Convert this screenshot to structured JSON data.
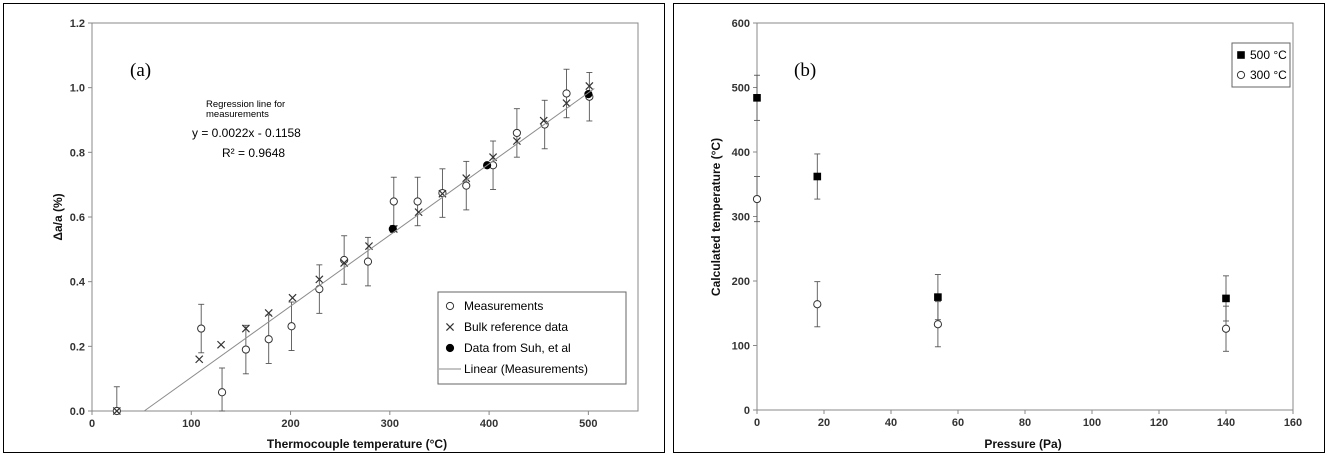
{
  "chart_data": [
    {
      "type": "scatter",
      "panel_label": "(a)",
      "xlabel": "Thermocouple temperature (°C)",
      "ylabel": "Δa/a (%)",
      "xlim": [
        0,
        550
      ],
      "ylim": [
        0,
        1.2
      ],
      "x_ticks": [
        "0",
        "100",
        "200",
        "300",
        "400",
        "500"
      ],
      "y_ticks": [
        "0.0",
        "0.2",
        "0.4",
        "0.6",
        "0.8",
        "1.0",
        "1.2"
      ],
      "grid": false,
      "legend_position": "bottom-right",
      "annotation": {
        "title_line1": "Regression line for",
        "title_line2": "measurements",
        "equation": "y = 0.0022x - 0.1158",
        "r2": "R² = 0.9648"
      },
      "series": [
        {
          "name": "Measurements",
          "marker": "open-circle",
          "points": [
            {
              "x": 25,
              "y": 0.0,
              "err": 0.075
            },
            {
              "x": 110,
              "y": 0.255,
              "err": 0.075
            },
            {
              "x": 131,
              "y": 0.058,
              "err": 0.075
            },
            {
              "x": 155,
              "y": 0.19,
              "err": 0.075
            },
            {
              "x": 178,
              "y": 0.222,
              "err": 0.075
            },
            {
              "x": 201,
              "y": 0.262,
              "err": 0.075
            },
            {
              "x": 229,
              "y": 0.377,
              "err": 0.075
            },
            {
              "x": 254,
              "y": 0.467,
              "err": 0.075
            },
            {
              "x": 278,
              "y": 0.462,
              "err": 0.075
            },
            {
              "x": 304,
              "y": 0.648,
              "err": 0.075
            },
            {
              "x": 328,
              "y": 0.648,
              "err": 0.075
            },
            {
              "x": 353,
              "y": 0.674,
              "err": 0.075
            },
            {
              "x": 377,
              "y": 0.697,
              "err": 0.075
            },
            {
              "x": 404,
              "y": 0.76,
              "err": 0.075
            },
            {
              "x": 428,
              "y": 0.86,
              "err": 0.075
            },
            {
              "x": 456,
              "y": 0.886,
              "err": 0.075
            },
            {
              "x": 478,
              "y": 0.982,
              "err": 0.075
            },
            {
              "x": 501,
              "y": 0.972,
              "err": 0.075
            }
          ]
        },
        {
          "name": "Bulk reference data",
          "marker": "x",
          "points": [
            {
              "x": 25,
              "y": 0.0
            },
            {
              "x": 108,
              "y": 0.16
            },
            {
              "x": 130,
              "y": 0.205
            },
            {
              "x": 155,
              "y": 0.255
            },
            {
              "x": 178,
              "y": 0.303
            },
            {
              "x": 202,
              "y": 0.35
            },
            {
              "x": 229,
              "y": 0.407
            },
            {
              "x": 254,
              "y": 0.458
            },
            {
              "x": 279,
              "y": 0.51
            },
            {
              "x": 304,
              "y": 0.563
            },
            {
              "x": 329,
              "y": 0.615
            },
            {
              "x": 353,
              "y": 0.672
            },
            {
              "x": 377,
              "y": 0.72
            },
            {
              "x": 404,
              "y": 0.785
            },
            {
              "x": 428,
              "y": 0.835
            },
            {
              "x": 455,
              "y": 0.898
            },
            {
              "x": 478,
              "y": 0.952
            },
            {
              "x": 501,
              "y": 1.005
            }
          ]
        },
        {
          "name": "Data from Suh, et al",
          "marker": "filled-circle",
          "points": [
            {
              "x": 303,
              "y": 0.563
            },
            {
              "x": 398,
              "y": 0.76
            },
            {
              "x": 500,
              "y": 0.98
            }
          ]
        },
        {
          "name": "Linear (Measurements)",
          "marker": "line",
          "slope": 0.0022,
          "intercept": -0.1158,
          "x_range": [
            52.6,
            506
          ]
        }
      ]
    },
    {
      "type": "scatter",
      "panel_label": "(b)",
      "xlabel": "Pressure (Pa)",
      "ylabel": "Calculated temperature (°C)",
      "xlim": [
        0,
        160
      ],
      "ylim": [
        0,
        600
      ],
      "x_ticks": [
        "0",
        "20",
        "40",
        "60",
        "80",
        "100",
        "120",
        "140",
        "160"
      ],
      "y_ticks": [
        "0",
        "100",
        "200",
        "300",
        "400",
        "500",
        "600"
      ],
      "grid": false,
      "legend_position": "top-right",
      "series": [
        {
          "name": "500 °C",
          "marker": "filled-square",
          "points": [
            {
              "x": 0,
              "y": 484,
              "err": 35
            },
            {
              "x": 18,
              "y": 362,
              "err": 35
            },
            {
              "x": 54,
              "y": 175,
              "err": 35
            },
            {
              "x": 140,
              "y": 173,
              "err": 35
            }
          ]
        },
        {
          "name": "300 °C",
          "marker": "open-circle",
          "points": [
            {
              "x": 0,
              "y": 327,
              "err": 35
            },
            {
              "x": 18,
              "y": 164,
              "err": 35
            },
            {
              "x": 54,
              "y": 133,
              "err": 35
            },
            {
              "x": 140,
              "y": 126,
              "err": 35
            }
          ]
        }
      ]
    }
  ]
}
